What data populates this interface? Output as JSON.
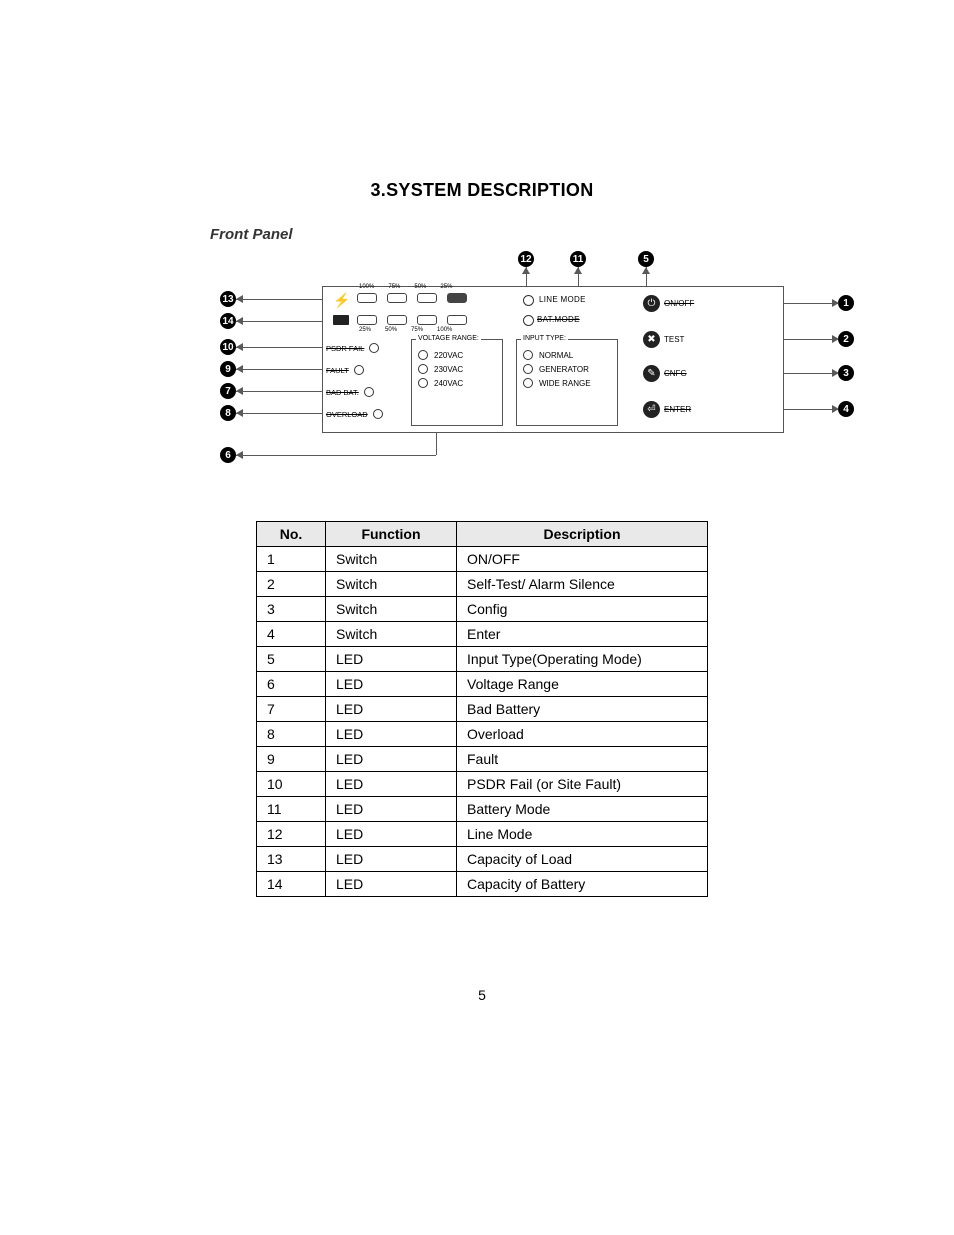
{
  "title": "3.SYSTEM DESCRIPTION",
  "subtitle": "Front Panel",
  "page_number": "5",
  "load_percents": [
    "100%",
    "75%",
    "50%",
    "25%"
  ],
  "batt_percents": [
    "25%",
    "50%",
    "75%",
    "100%"
  ],
  "mode": {
    "line": "LINE MODE",
    "batt": "BAT.MODE"
  },
  "status": {
    "psdr": "PSDR FAIL",
    "fault": "FAULT",
    "badbat": "BAD BAT.",
    "overload": "OVERLOAD"
  },
  "voltage": {
    "title": "VOLTAGE RANGE:",
    "opts": [
      "220VAC",
      "230VAC",
      "240VAC"
    ]
  },
  "input": {
    "title": "INPUT TYPE:",
    "opts": [
      "NORMAL",
      "GENERATOR",
      "WIDE RANGE"
    ]
  },
  "buttons": {
    "onoff": "ON/OFF",
    "test": "TEST",
    "cnfg": "CNFG",
    "enter": "ENTER"
  },
  "callouts": {
    "1": "1",
    "2": "2",
    "3": "3",
    "4": "4",
    "5": "5",
    "6": "6",
    "7": "7",
    "8": "8",
    "9": "9",
    "10": "10",
    "11": "11",
    "12": "12",
    "13": "13",
    "14": "14"
  },
  "table": {
    "headers": {
      "no": "No.",
      "fn": "Function",
      "de": "Description"
    },
    "rows": [
      {
        "no": "1",
        "fn": "Switch",
        "de": "ON/OFF"
      },
      {
        "no": "2",
        "fn": "Switch",
        "de": "Self-Test/ Alarm Silence"
      },
      {
        "no": "3",
        "fn": "Switch",
        "de": "Config"
      },
      {
        "no": "4",
        "fn": "Switch",
        "de": "Enter"
      },
      {
        "no": "5",
        "fn": "LED",
        "de": "Input Type(Operating Mode)"
      },
      {
        "no": "6",
        "fn": "LED",
        "de": "Voltage Range"
      },
      {
        "no": "7",
        "fn": "LED",
        "de": "Bad Battery"
      },
      {
        "no": "8",
        "fn": "LED",
        "de": "Overload"
      },
      {
        "no": "9",
        "fn": "LED",
        "de": "Fault"
      },
      {
        "no": "10",
        "fn": "LED",
        "de": "PSDR Fail (or Site Fault)"
      },
      {
        "no": "11",
        "fn": "LED",
        "de": "Battery Mode"
      },
      {
        "no": "12",
        "fn": "LED",
        "de": "Line Mode"
      },
      {
        "no": "13",
        "fn": "LED",
        "de": "Capacity of Load"
      },
      {
        "no": "14",
        "fn": "LED",
        "de": "Capacity of Battery"
      }
    ]
  }
}
